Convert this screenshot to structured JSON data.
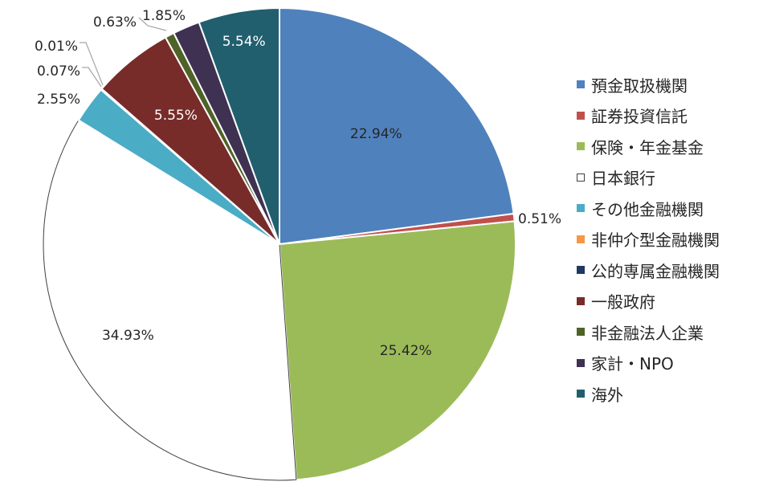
{
  "chart_data": {
    "type": "pie",
    "start_angle_deg": 0,
    "direction": "clockwise",
    "legend_position": "right",
    "slices": [
      {
        "label": "預金取扱機関",
        "value": 22.94,
        "value_label": "22.94%",
        "color": "#4F81BD"
      },
      {
        "label": "証券投資信託",
        "value": 0.51,
        "value_label": "0.51%",
        "color": "#C0504D"
      },
      {
        "label": "保険・年金基金",
        "value": 25.42,
        "value_label": "25.42%",
        "color": "#9BBB59"
      },
      {
        "label": "日本銀行",
        "value": 34.93,
        "value_label": "34.93%",
        "color": "#FFFFFF"
      },
      {
        "label": "その他金融機関",
        "value": 2.55,
        "value_label": "2.55%",
        "color": "#4BACC6"
      },
      {
        "label": "非仲介型金融機関",
        "value": 0.07,
        "value_label": "0.07%",
        "color": "#F79646"
      },
      {
        "label": "公的専属金融機関",
        "value": 0.01,
        "value_label": "0.01%",
        "color": "#1F3864"
      },
      {
        "label": "一般政府",
        "value": 5.55,
        "value_label": "5.55%",
        "color": "#772C2A"
      },
      {
        "label": "非金融法人企業",
        "value": 0.63,
        "value_label": "0.63%",
        "color": "#4F6228"
      },
      {
        "label": "家計・NPO",
        "value": 1.85,
        "value_label": "1.85%",
        "color": "#3F3151"
      },
      {
        "label": "海外",
        "value": 5.54,
        "value_label": "5.54%",
        "color": "#215F6E"
      }
    ]
  }
}
